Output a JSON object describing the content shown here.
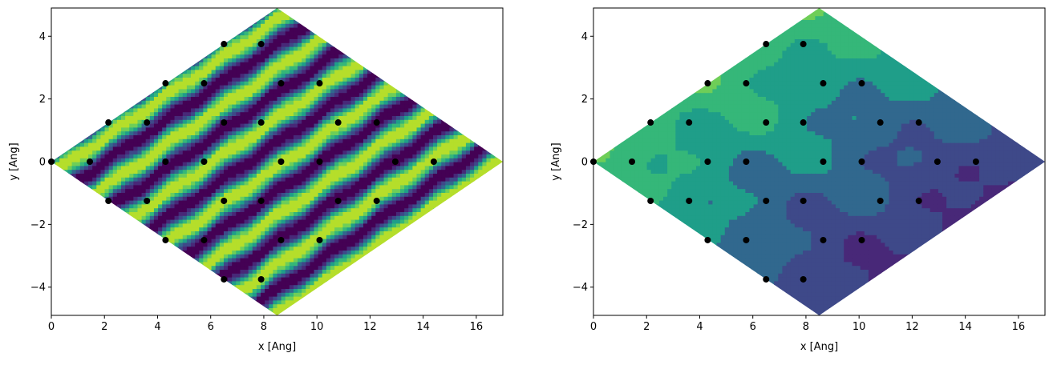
{
  "chart_data": [
    {
      "type": "contour",
      "title": "",
      "xlabel": "x [Ang]",
      "ylabel": "y [Ang]",
      "xlim": [
        0,
        17
      ],
      "ylim": [
        -4.9,
        4.9
      ],
      "xticks": [
        0,
        2,
        4,
        6,
        8,
        10,
        12,
        14,
        16
      ],
      "yticks": [
        -4,
        -2,
        0,
        2,
        4
      ],
      "domain_vertices": [
        [
          0,
          0
        ],
        [
          8.5,
          4.9
        ],
        [
          17,
          0
        ],
        [
          8.5,
          -4.9
        ]
      ],
      "colormap": "viridis",
      "pattern": "stripes",
      "pattern_params": {
        "kx": 0.37,
        "ky": -0.64,
        "bump": 0.25
      },
      "points": [
        [
          6.5,
          3.75
        ],
        [
          7.9,
          3.75
        ],
        [
          4.3,
          2.5
        ],
        [
          5.75,
          2.5
        ],
        [
          8.65,
          2.5
        ],
        [
          10.1,
          2.5
        ],
        [
          2.15,
          1.25
        ],
        [
          3.6,
          1.25
        ],
        [
          6.5,
          1.25
        ],
        [
          7.9,
          1.25
        ],
        [
          10.8,
          1.25
        ],
        [
          12.25,
          1.25
        ],
        [
          0,
          0
        ],
        [
          1.45,
          0
        ],
        [
          4.3,
          0
        ],
        [
          5.75,
          0
        ],
        [
          8.65,
          0
        ],
        [
          10.1,
          0
        ],
        [
          12.95,
          0
        ],
        [
          14.4,
          0
        ],
        [
          2.15,
          -1.25
        ],
        [
          3.6,
          -1.25
        ],
        [
          6.5,
          -1.25
        ],
        [
          7.9,
          -1.25
        ],
        [
          10.8,
          -1.25
        ],
        [
          12.25,
          -1.25
        ],
        [
          4.3,
          -2.5
        ],
        [
          5.75,
          -2.5
        ],
        [
          8.65,
          -2.5
        ],
        [
          10.1,
          -2.5
        ],
        [
          6.5,
          -3.75
        ],
        [
          7.9,
          -3.75
        ]
      ]
    },
    {
      "type": "contour",
      "title": "",
      "xlabel": "x [Ang]",
      "ylabel": "y [Ang]",
      "xlim": [
        0,
        17
      ],
      "ylim": [
        -4.9,
        4.9
      ],
      "xticks": [
        0,
        2,
        4,
        6,
        8,
        10,
        12,
        14,
        16
      ],
      "yticks": [
        -4,
        -2,
        0,
        2,
        4
      ],
      "domain_vertices": [
        [
          0,
          0
        ],
        [
          8.5,
          4.9
        ],
        [
          17,
          0
        ],
        [
          8.5,
          -4.9
        ]
      ],
      "colormap": "viridis",
      "pattern": "blobs",
      "pattern_params": {
        "gx": 0.078,
        "gy": -0.135
      },
      "points": [
        [
          6.5,
          3.75
        ],
        [
          7.9,
          3.75
        ],
        [
          4.3,
          2.5
        ],
        [
          5.75,
          2.5
        ],
        [
          8.65,
          2.5
        ],
        [
          10.1,
          2.5
        ],
        [
          2.15,
          1.25
        ],
        [
          3.6,
          1.25
        ],
        [
          6.5,
          1.25
        ],
        [
          7.9,
          1.25
        ],
        [
          10.8,
          1.25
        ],
        [
          12.25,
          1.25
        ],
        [
          0,
          0
        ],
        [
          1.45,
          0
        ],
        [
          4.3,
          0
        ],
        [
          5.75,
          0
        ],
        [
          8.65,
          0
        ],
        [
          10.1,
          0
        ],
        [
          12.95,
          0
        ],
        [
          14.4,
          0
        ],
        [
          2.15,
          -1.25
        ],
        [
          3.6,
          -1.25
        ],
        [
          6.5,
          -1.25
        ],
        [
          7.9,
          -1.25
        ],
        [
          10.8,
          -1.25
        ],
        [
          12.25,
          -1.25
        ],
        [
          4.3,
          -2.5
        ],
        [
          5.75,
          -2.5
        ],
        [
          8.65,
          -2.5
        ],
        [
          10.1,
          -2.5
        ],
        [
          6.5,
          -3.75
        ],
        [
          7.9,
          -3.75
        ]
      ]
    }
  ]
}
